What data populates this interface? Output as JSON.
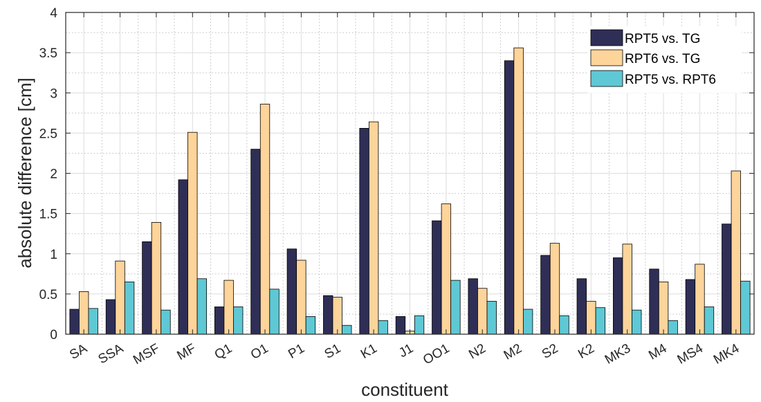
{
  "chart_data": {
    "type": "bar",
    "xlabel": "constituent",
    "ylabel": "absolute difference [cm]",
    "ylim": [
      0,
      4
    ],
    "yticks": [
      0,
      0.5,
      1,
      1.5,
      2,
      2.5,
      3,
      3.5,
      4
    ],
    "ytick_labels": [
      "0",
      "0.5",
      "1",
      "1.5",
      "2",
      "2.5",
      "3",
      "3.5",
      "4"
    ],
    "grid": true,
    "minor_grid": true,
    "legend_position": "top-right",
    "categories": [
      "SA",
      "SSA",
      "MSF",
      "MF",
      "Q1",
      "O1",
      "P1",
      "S1",
      "K1",
      "J1",
      "OO1",
      "N2",
      "M2",
      "S2",
      "K2",
      "MK3",
      "M4",
      "MS4",
      "MK4"
    ],
    "series": [
      {
        "name": "RPT5 vs. TG",
        "color": "#2f2e56",
        "values": [
          0.31,
          0.43,
          1.15,
          1.92,
          0.34,
          2.3,
          1.06,
          0.48,
          2.56,
          0.22,
          1.41,
          0.69,
          3.4,
          0.98,
          0.69,
          0.95,
          0.81,
          0.68,
          1.37
        ]
      },
      {
        "name": "RPT6 vs. TG",
        "color": "#fdd49a",
        "values": [
          0.53,
          0.91,
          1.39,
          2.51,
          0.67,
          2.86,
          0.92,
          0.46,
          2.64,
          0.04,
          1.62,
          0.57,
          3.56,
          1.13,
          0.41,
          1.12,
          0.65,
          0.87,
          2.03
        ]
      },
      {
        "name": "RPT5 vs. RPT6",
        "color": "#5ec8d5",
        "values": [
          0.32,
          0.65,
          0.3,
          0.69,
          0.34,
          0.56,
          0.22,
          0.11,
          0.17,
          0.23,
          0.67,
          0.41,
          0.31,
          0.23,
          0.33,
          0.3,
          0.17,
          0.34,
          0.66
        ]
      }
    ]
  }
}
